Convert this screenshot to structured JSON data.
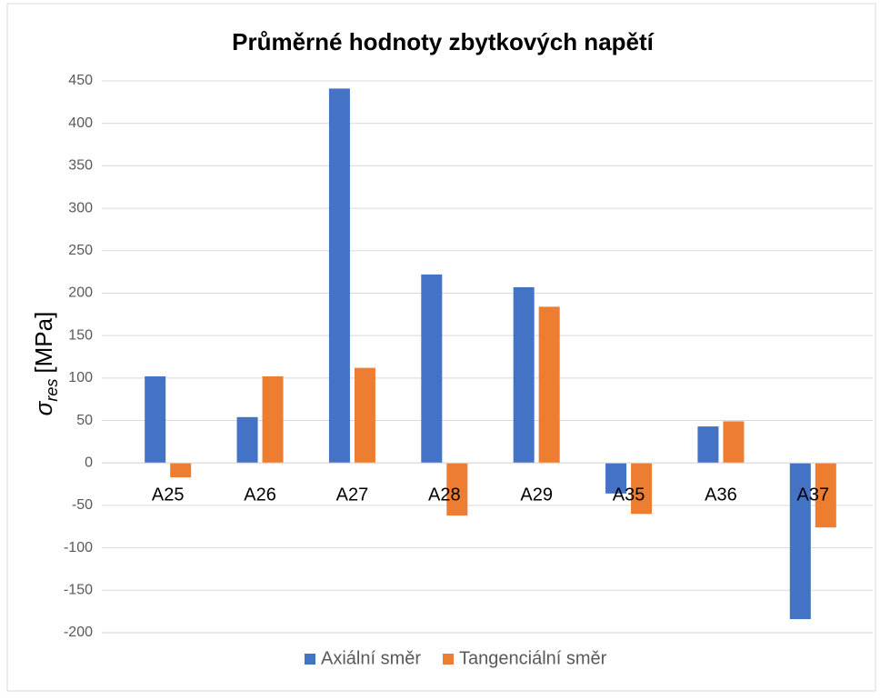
{
  "chart_data": {
    "type": "bar",
    "title": "Průměrné hodnoty zbytkových napětí",
    "ylabel": {
      "symbol": "σ",
      "subscript": "res",
      "unit": "[MPa]"
    },
    "categories": [
      "A25",
      "A26",
      "A27",
      "A28",
      "A29",
      "A35",
      "A36",
      "A37"
    ],
    "series": [
      {
        "name": "Axiální směr",
        "color": "#4472c4",
        "values": [
          102,
          54,
          441,
          222,
          207,
          -36,
          43,
          -184
        ]
      },
      {
        "name": "Tangenciální směr",
        "color": "#ed7d31",
        "values": [
          -17,
          102,
          112,
          -62,
          184,
          -60,
          49,
          -76
        ]
      }
    ],
    "ylim": [
      -200,
      450
    ],
    "yticks": [
      -200,
      -150,
      -100,
      -50,
      0,
      50,
      100,
      150,
      200,
      250,
      300,
      350,
      400,
      450
    ],
    "grid": true,
    "legend": "bottom"
  }
}
